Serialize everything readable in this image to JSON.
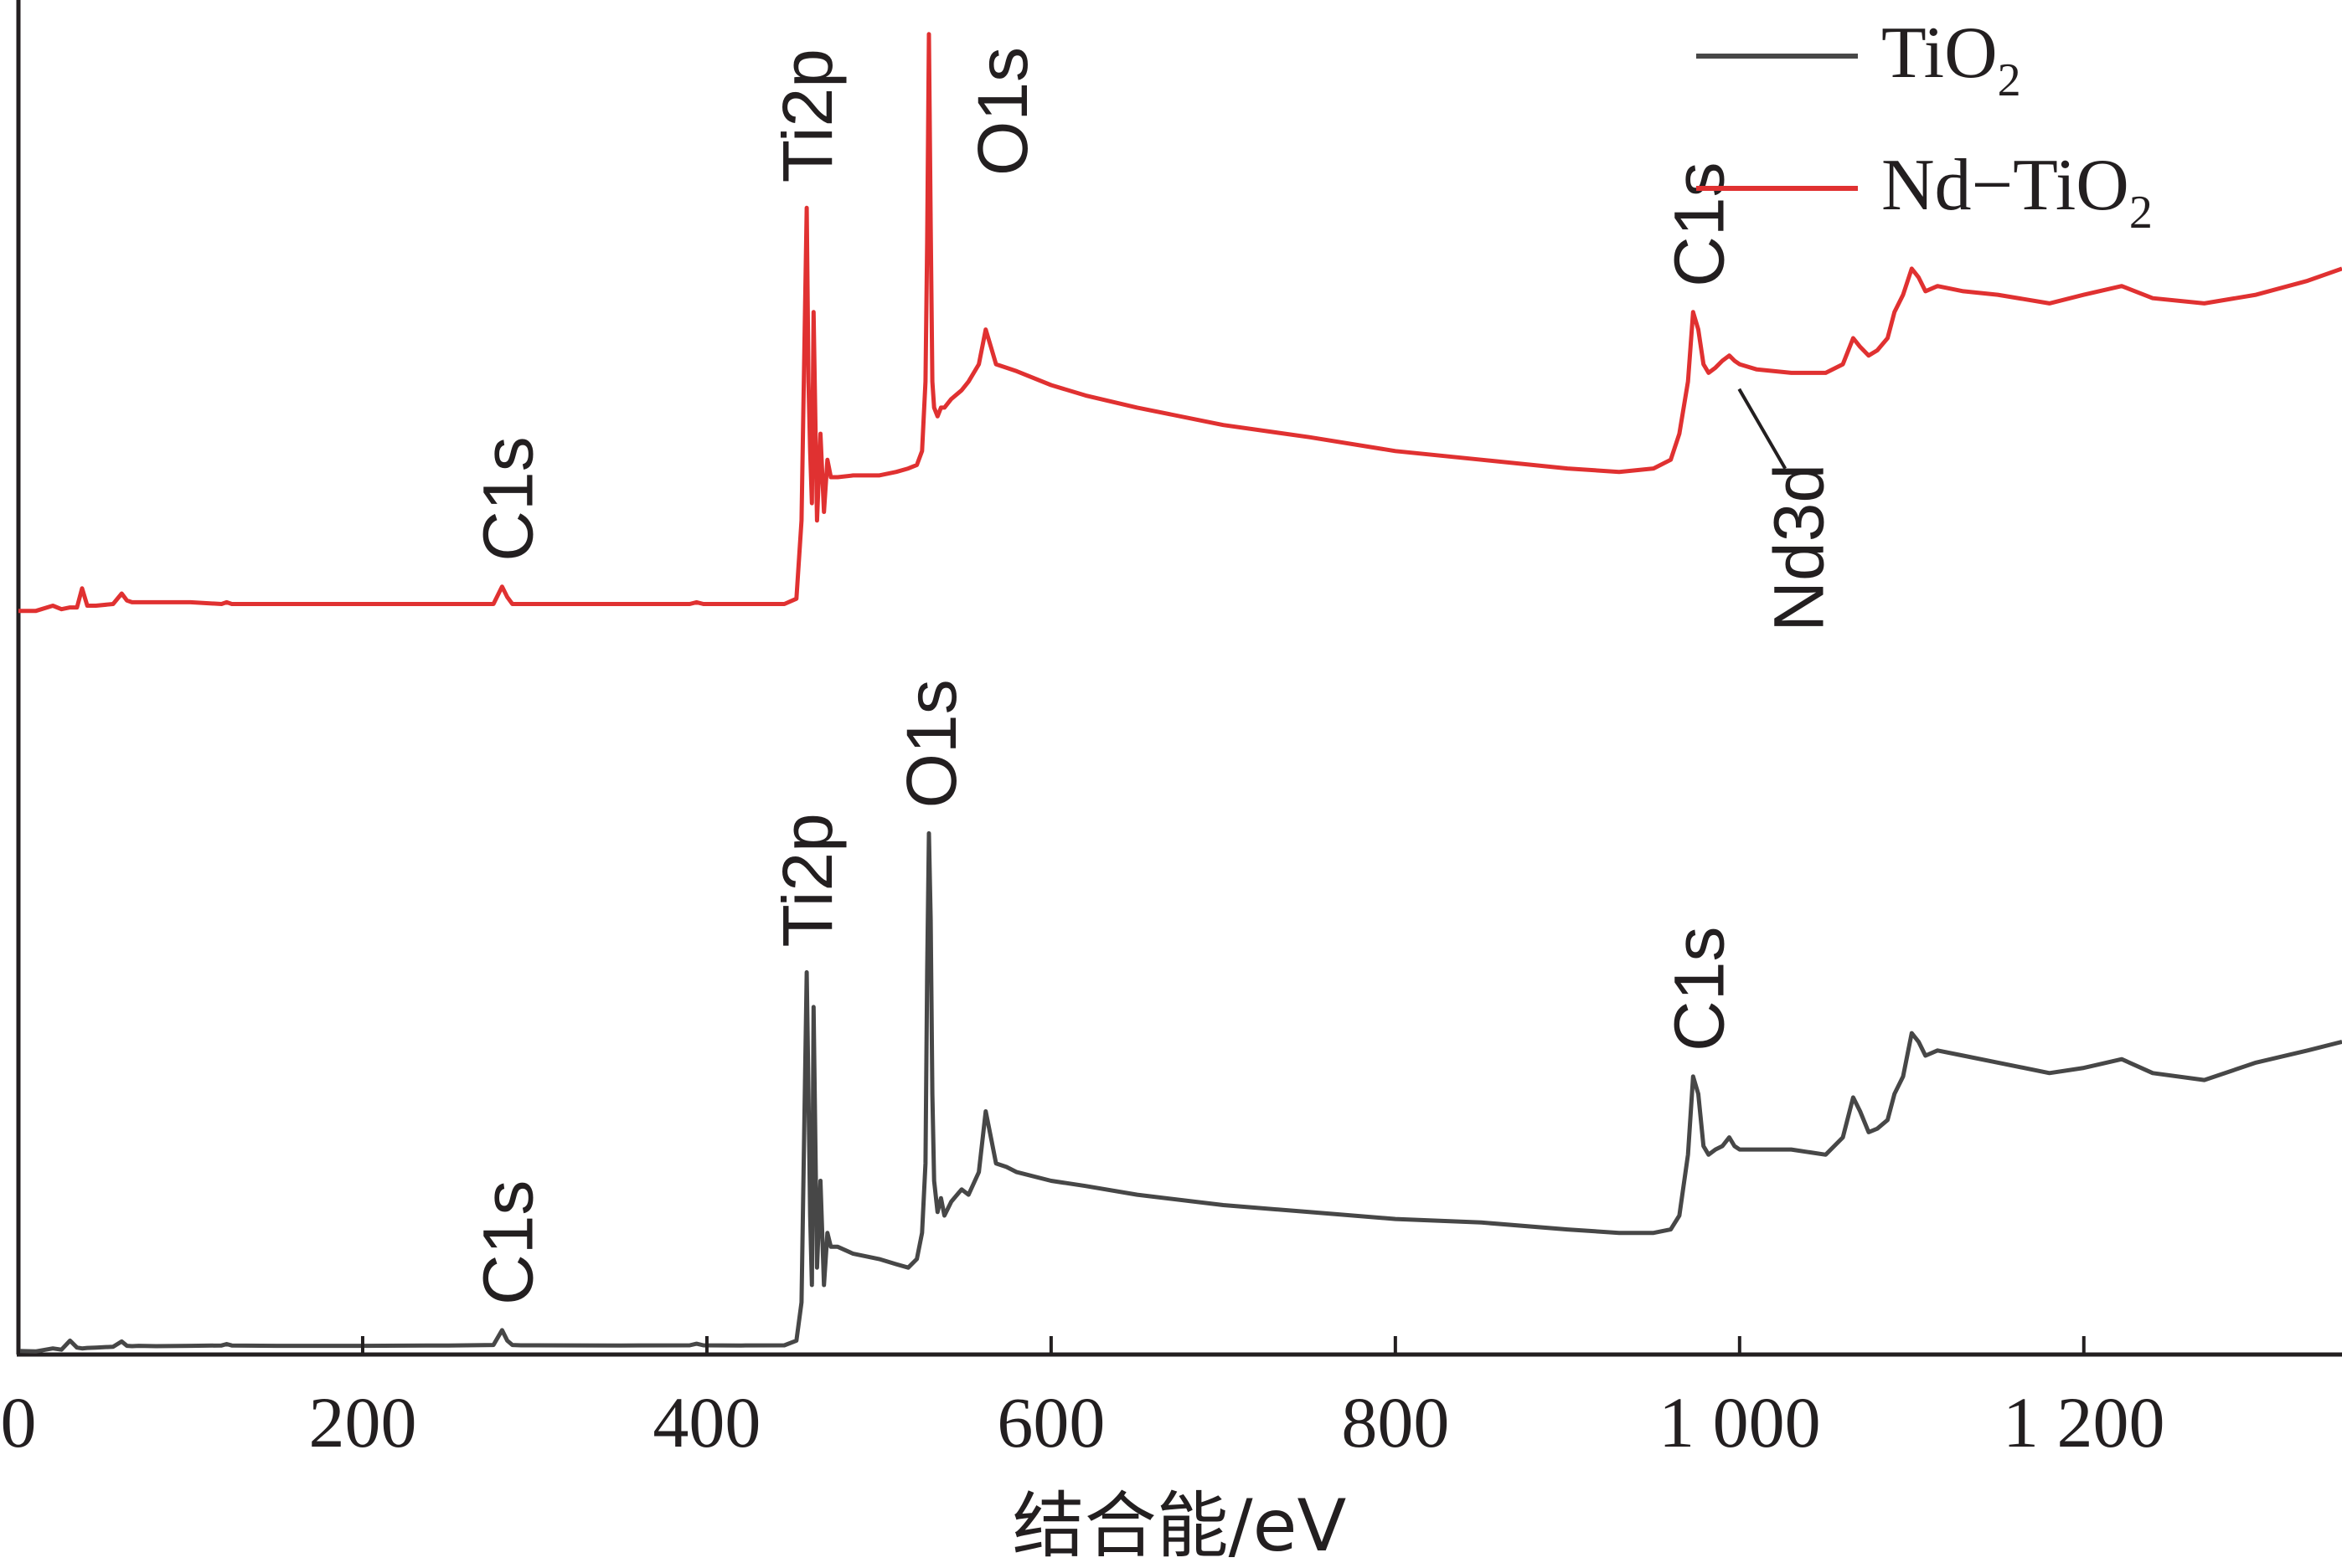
{
  "chart_data": {
    "type": "line",
    "xlabel": "结合能/eV",
    "ylabel": "",
    "xlim": [
      0,
      1350
    ],
    "x_ticks": [
      0,
      200,
      400,
      600,
      800,
      1000,
      1200
    ],
    "x_tick_labels": [
      "0",
      "200",
      "400",
      "600",
      "800",
      "1 000",
      "1 200"
    ],
    "y_ticks_shown": false,
    "grid": false,
    "legend_position": "top-right",
    "series": [
      {
        "name": "TiO2",
        "legend_main": "TiO",
        "legend_sub": "2",
        "color": "#474747",
        "x": [
          0,
          10,
          20,
          25,
          30,
          34,
          37,
          40,
          45,
          55,
          60,
          63,
          66,
          70,
          80,
          100,
          118,
          121,
          124,
          150,
          200,
          250,
          276,
          281,
          284,
          287,
          292,
          300,
          350,
          390,
          394,
          398,
          420,
          445,
          452,
          455,
          458,
          459,
          460,
          461,
          462,
          464,
          466,
          468,
          470,
          472,
          476,
          485,
          500,
          510,
          517,
          522,
          525,
          527,
          528,
          529,
          530,
          531,
          532,
          534,
          536,
          538,
          542,
          548,
          552,
          558,
          562,
          565,
          568,
          574,
          580,
          600,
          620,
          650,
          700,
          750,
          800,
          850,
          900,
          930,
          950,
          960,
          965,
          970,
          973,
          976,
          979,
          982,
          986,
          990,
          994,
          997,
          1000,
          1010,
          1030,
          1050,
          1060,
          1066,
          1070,
          1075,
          1080,
          1086,
          1090,
          1095,
          1100,
          1104,
          1108,
          1115,
          1130,
          1150,
          1180,
          1200,
          1222,
          1240,
          1270,
          1300,
          1330,
          1350
        ],
        "y": [
          2,
          1.8,
          3.5,
          2.8,
          8,
          4,
          3.5,
          3.8,
          4,
          4.5,
          7.5,
          5,
          4.8,
          5,
          4.8,
          5,
          5.2,
          6,
          5.2,
          5,
          5,
          5.2,
          5.5,
          14,
          8,
          5.5,
          5.3,
          5.3,
          5.2,
          5.3,
          6.2,
          5.3,
          5.2,
          5.3,
          8,
          30,
          220,
          150,
          80,
          40,
          200,
          50,
          100,
          40,
          70,
          62,
          62,
          58,
          55,
          52,
          50,
          55,
          70,
          110,
          220,
          300,
          250,
          150,
          100,
          82,
          90,
          80,
          88,
          95,
          92,
          105,
          140,
          125,
          110,
          108,
          105,
          100,
          97,
          92,
          86,
          82,
          78,
          76,
          72,
          70,
          70,
          72,
          80,
          115,
          160,
          150,
          120,
          115,
          118,
          120,
          125,
          120,
          118,
          118,
          118,
          115,
          125,
          148,
          140,
          128,
          130,
          135,
          150,
          160,
          185,
          180,
          172,
          175,
          172,
          168,
          162,
          165,
          170,
          162,
          158,
          168,
          175,
          180
        ]
      },
      {
        "name": "Nd-TiO2",
        "legend_main": "Nd−TiO",
        "legend_sub": "2",
        "color": "#e03131",
        "x": [
          0,
          10,
          20,
          25,
          30,
          34,
          37,
          40,
          45,
          55,
          60,
          63,
          66,
          70,
          80,
          100,
          118,
          121,
          124,
          150,
          200,
          250,
          276,
          281,
          284,
          287,
          292,
          300,
          350,
          390,
          394,
          398,
          420,
          445,
          452,
          455,
          458,
          459,
          460,
          461,
          462,
          464,
          466,
          468,
          470,
          472,
          476,
          485,
          500,
          510,
          517,
          522,
          525,
          527,
          528,
          529,
          530,
          531,
          532,
          534,
          536,
          538,
          542,
          548,
          552,
          558,
          562,
          565,
          568,
          574,
          580,
          600,
          620,
          650,
          700,
          750,
          800,
          850,
          900,
          930,
          950,
          960,
          965,
          970,
          973,
          976,
          979,
          982,
          986,
          990,
          994,
          997,
          1000,
          1010,
          1030,
          1050,
          1060,
          1066,
          1070,
          1075,
          1080,
          1086,
          1090,
          1095,
          1100,
          1104,
          1108,
          1115,
          1130,
          1150,
          1180,
          1200,
          1222,
          1240,
          1270,
          1300,
          1330,
          1350
        ],
        "y": [
          428,
          428,
          431,
          429,
          430,
          430,
          441,
          431,
          431,
          432,
          438,
          434,
          433,
          433,
          433,
          433,
          432,
          433,
          432,
          432,
          432,
          432,
          432,
          442,
          436,
          432,
          432,
          432,
          432,
          432,
          433,
          432,
          432,
          432,
          435,
          480,
          660,
          560,
          520,
          490,
          600,
          480,
          530,
          485,
          515,
          505,
          505,
          506,
          506,
          508,
          510,
          512,
          520,
          560,
          640,
          760,
          650,
          560,
          545,
          540,
          545,
          545,
          550,
          555,
          560,
          570,
          590,
          580,
          570,
          568,
          566,
          558,
          552,
          545,
          535,
          528,
          520,
          515,
          510,
          508,
          510,
          515,
          530,
          560,
          600,
          590,
          570,
          565,
          568,
          572,
          575,
          572,
          570,
          567,
          565,
          565,
          570,
          585,
          580,
          575,
          578,
          585,
          600,
          610,
          625,
          620,
          612,
          615,
          612,
          610,
          605,
          610,
          615,
          608,
          605,
          610,
          618,
          625
        ]
      }
    ],
    "annotations": [
      {
        "text": "C1s",
        "series": "TiO2",
        "x": 284
      },
      {
        "text": "Ti2p",
        "series": "TiO2",
        "x": 458
      },
      {
        "text": "O1s",
        "series": "TiO2",
        "x": 530
      },
      {
        "text": "C1s",
        "series": "TiO2",
        "x": 976
      },
      {
        "text": "C1s",
        "series": "Nd-TiO2",
        "x": 284
      },
      {
        "text": "Ti2p",
        "series": "Nd-TiO2",
        "x": 458
      },
      {
        "text": "O1s",
        "series": "Nd-TiO2",
        "x": 530
      },
      {
        "text": "C1s",
        "series": "Nd-TiO2",
        "x": 976
      },
      {
        "text": "Nd3d",
        "series": "Nd-TiO2",
        "x": 990
      }
    ]
  }
}
